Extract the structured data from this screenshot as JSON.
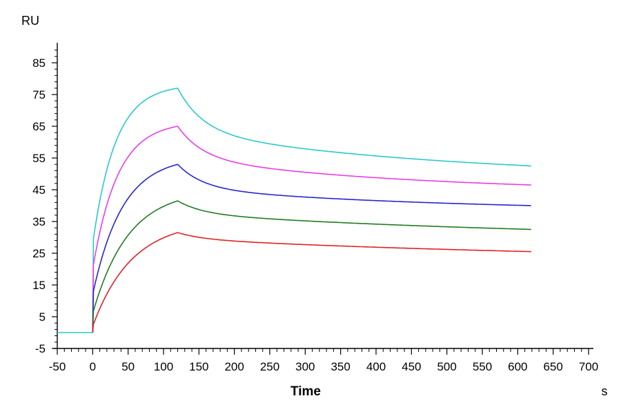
{
  "chart_data": {
    "type": "line",
    "title": "",
    "xlabel": "Time",
    "xunit": "s",
    "ylabel": "RU",
    "xlim": [
      -50,
      700
    ],
    "ylim": [
      -5,
      92
    ],
    "xticks": [
      -50,
      0,
      50,
      100,
      150,
      200,
      250,
      300,
      350,
      400,
      450,
      500,
      550,
      600,
      650,
      700
    ],
    "yticks": [
      -5,
      5,
      15,
      25,
      35,
      45,
      55,
      65,
      75,
      85
    ],
    "x_tick_labels": [
      "-50",
      "0",
      "50",
      "100",
      "150",
      "200",
      "250",
      "300",
      "350",
      "400",
      "450",
      "500",
      "550",
      "600",
      "650",
      "700"
    ],
    "y_tick_labels": [
      "-5",
      "5",
      "15",
      "25",
      "35",
      "45",
      "55",
      "65",
      "75",
      "85"
    ],
    "grid": false,
    "legend": "none",
    "baseline": {
      "x": [
        -50,
        0
      ],
      "y": [
        0,
        0
      ]
    },
    "association_end": 120,
    "x_end": 620,
    "series": [
      {
        "name": "curve-cyan",
        "color": "#29c8c8",
        "jump": 28,
        "tau": 32,
        "peak": 77,
        "plateau": 48.5,
        "fast_amp": 13.5,
        "fast_tau": 35,
        "end": 52.5
      },
      {
        "name": "curve-magenta",
        "color": "#e73ce7",
        "jump": 20,
        "tau": 35,
        "peak": 65,
        "plateau": 44,
        "fast_amp": 10,
        "fast_tau": 35,
        "end": 46.5
      },
      {
        "name": "curve-blue",
        "color": "#2424d2",
        "jump": 12,
        "tau": 42,
        "peak": 53,
        "plateau": 38,
        "fast_amp": 7.5,
        "fast_tau": 35,
        "end": 40
      },
      {
        "name": "curve-green",
        "color": "#1f7a1f",
        "jump": 6,
        "tau": 50,
        "peak": 41.5,
        "plateau": 29,
        "fast_amp": 4,
        "fast_tau": 35,
        "end": 32.5
      },
      {
        "name": "curve-red",
        "color": "#e02020",
        "jump": 2,
        "tau": 55,
        "peak": 31.5,
        "plateau": 22,
        "fast_amp": 2,
        "fast_tau": 35,
        "end": 25.5
      }
    ]
  }
}
